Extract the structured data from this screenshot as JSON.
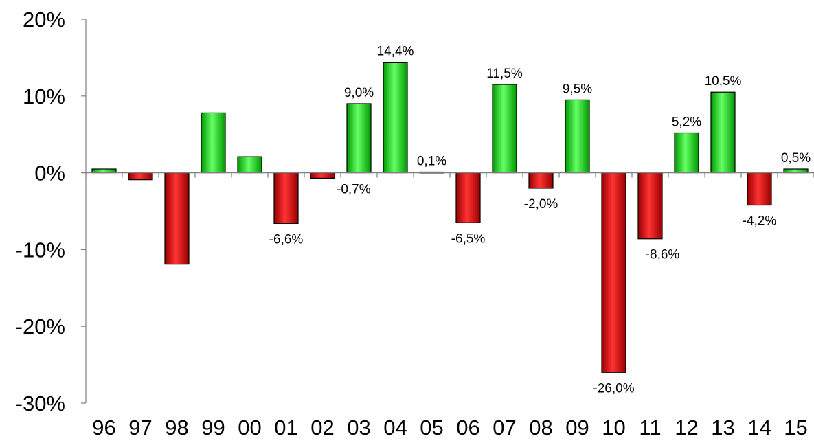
{
  "chart_data": {
    "type": "bar",
    "title": "",
    "xlabel": "",
    "ylabel": "",
    "ylim": [
      -30,
      20
    ],
    "yticks": [
      20,
      10,
      0,
      -10,
      -20,
      -30
    ],
    "ytick_labels": [
      "20%",
      "10%",
      "0%",
      "-10%",
      "-20%",
      "-30%"
    ],
    "categories": [
      "96",
      "97",
      "98",
      "99",
      "00",
      "01",
      "02",
      "03",
      "04",
      "05",
      "06",
      "07",
      "08",
      "09",
      "10",
      "11",
      "12",
      "13",
      "14",
      "15"
    ],
    "values": [
      0.5,
      -0.9,
      -11.9,
      7.8,
      2.1,
      -6.6,
      -0.7,
      9.0,
      14.4,
      0.1,
      -6.5,
      11.5,
      -2.0,
      9.5,
      -26.0,
      -8.6,
      5.2,
      10.5,
      -4.2,
      0.5
    ],
    "data_labels": [
      "",
      "",
      "",
      "",
      "",
      "-6,6%",
      "-0,7%",
      "9,0%",
      "14,4%",
      "0,1%",
      "-6,5%",
      "11,5%",
      "-2,0%",
      "9,5%",
      "-26,0%",
      "-8,6%",
      "5,2%",
      "10,5%",
      "-4,2%",
      "0,5%"
    ],
    "colors": {
      "positive_light": "#66ff66",
      "positive_dark": "#009900",
      "negative_light": "#ff3333",
      "negative_dark": "#990000",
      "axis": "#808080",
      "bar_border": "#000000"
    },
    "grid": false,
    "legend": "none"
  }
}
